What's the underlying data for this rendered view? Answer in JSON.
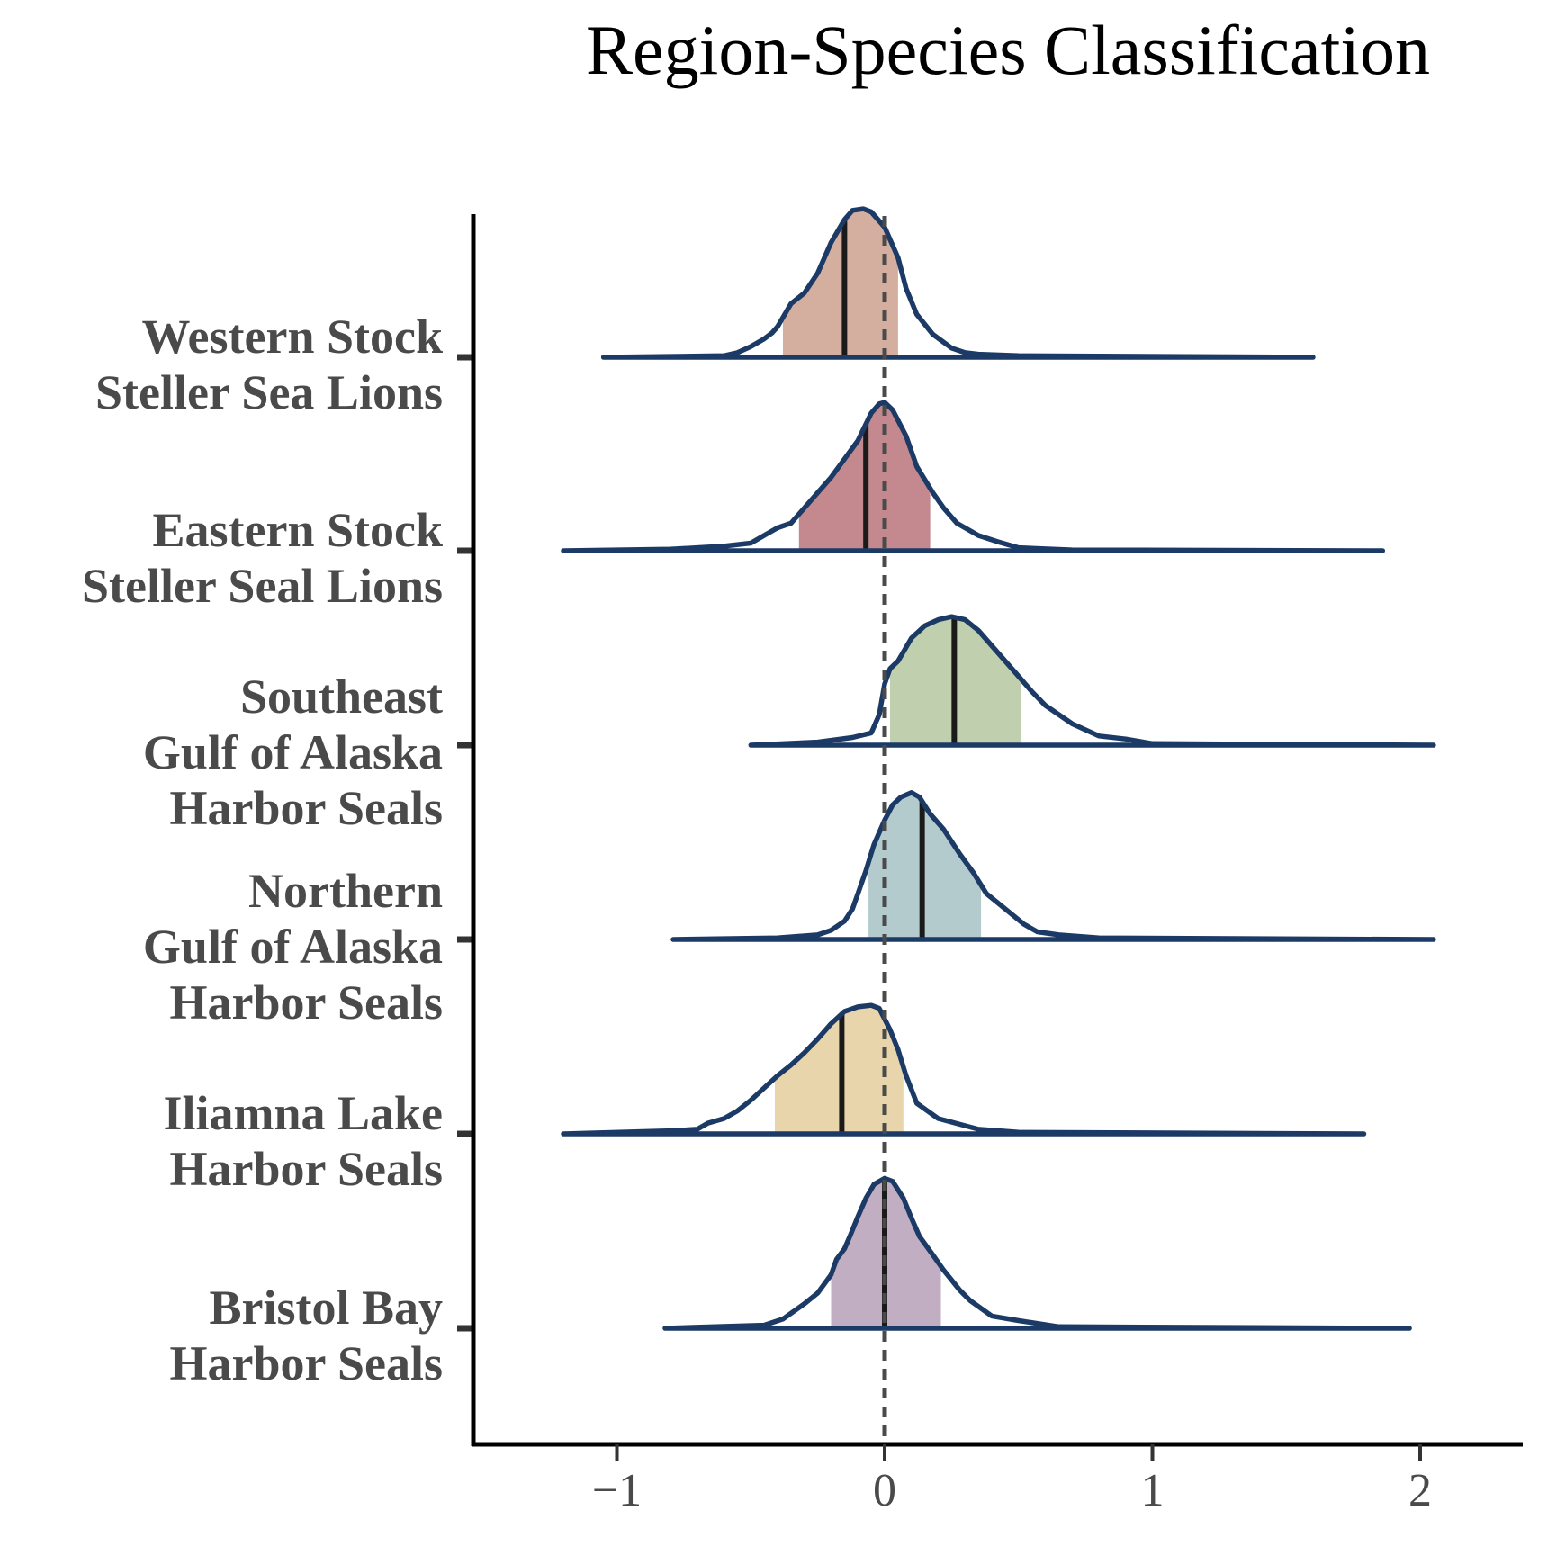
{
  "chart_data": {
    "type": "ridgeline",
    "title": "Region-Species Classification",
    "xlabel": "",
    "ylabel": "",
    "xlim": [
      -1.55,
      2.4
    ],
    "xticks": [
      -1,
      0,
      1,
      2
    ],
    "xtick_labels": [
      "−1",
      "0",
      "1",
      "2"
    ],
    "reference_line": {
      "x": 0,
      "style": "dashed"
    },
    "grid": false,
    "legend": "none",
    "outline_color": "#1c3a66",
    "series": [
      {
        "label_lines": [
          "Western Stock",
          "Steller Sea Lions"
        ],
        "color": "#d4afa0",
        "median": -0.15,
        "ci": [
          -0.38,
          0.05
        ],
        "range": [
          -1.05,
          1.6
        ],
        "density": [
          [
            -1.05,
            0
          ],
          [
            -0.6,
            0.01
          ],
          [
            -0.55,
            0.03
          ],
          [
            -0.5,
            0.07
          ],
          [
            -0.45,
            0.12
          ],
          [
            -0.42,
            0.16
          ],
          [
            -0.4,
            0.2
          ],
          [
            -0.35,
            0.35
          ],
          [
            -0.3,
            0.42
          ],
          [
            -0.25,
            0.55
          ],
          [
            -0.2,
            0.75
          ],
          [
            -0.15,
            0.9
          ],
          [
            -0.12,
            0.96
          ],
          [
            -0.08,
            0.97
          ],
          [
            -0.05,
            0.95
          ],
          [
            0,
            0.85
          ],
          [
            0.05,
            0.65
          ],
          [
            0.08,
            0.45
          ],
          [
            0.12,
            0.28
          ],
          [
            0.18,
            0.15
          ],
          [
            0.25,
            0.06
          ],
          [
            0.3,
            0.03
          ],
          [
            0.35,
            0.02
          ],
          [
            0.5,
            0.01
          ],
          [
            1.6,
            0
          ]
        ]
      },
      {
        "label_lines": [
          "Eastern Stock",
          "Steller Seal Lions"
        ],
        "color": "#c4898f",
        "median": -0.07,
        "ci": [
          -0.32,
          0.17
        ],
        "range": [
          -1.2,
          1.86
        ],
        "density": [
          [
            -1.2,
            0
          ],
          [
            -0.8,
            0.01
          ],
          [
            -0.6,
            0.03
          ],
          [
            -0.5,
            0.05
          ],
          [
            -0.45,
            0.1
          ],
          [
            -0.4,
            0.15
          ],
          [
            -0.35,
            0.18
          ],
          [
            -0.3,
            0.28
          ],
          [
            -0.25,
            0.38
          ],
          [
            -0.2,
            0.48
          ],
          [
            -0.15,
            0.6
          ],
          [
            -0.1,
            0.72
          ],
          [
            -0.05,
            0.9
          ],
          [
            -0.02,
            0.96
          ],
          [
            0,
            0.97
          ],
          [
            0.03,
            0.92
          ],
          [
            0.08,
            0.75
          ],
          [
            0.12,
            0.55
          ],
          [
            0.18,
            0.38
          ],
          [
            0.22,
            0.28
          ],
          [
            0.27,
            0.18
          ],
          [
            0.35,
            0.1
          ],
          [
            0.42,
            0.06
          ],
          [
            0.5,
            0.02
          ],
          [
            0.7,
            0.005
          ],
          [
            1.86,
            0
          ]
        ]
      },
      {
        "label_lines": [
          "Southeast",
          "Gulf of Alaska",
          "Harbor Seals"
        ],
        "color": "#c0cfae",
        "median": 0.26,
        "ci": [
          0.02,
          0.51
        ],
        "range": [
          -0.5,
          2.05
        ],
        "density": [
          [
            -0.5,
            0
          ],
          [
            -0.25,
            0.02
          ],
          [
            -0.12,
            0.05
          ],
          [
            -0.05,
            0.08
          ],
          [
            -0.02,
            0.2
          ],
          [
            0,
            0.4
          ],
          [
            0.02,
            0.5
          ],
          [
            0.05,
            0.55
          ],
          [
            0.1,
            0.7
          ],
          [
            0.15,
            0.78
          ],
          [
            0.2,
            0.82
          ],
          [
            0.25,
            0.84
          ],
          [
            0.3,
            0.82
          ],
          [
            0.35,
            0.75
          ],
          [
            0.4,
            0.65
          ],
          [
            0.45,
            0.55
          ],
          [
            0.5,
            0.45
          ],
          [
            0.55,
            0.35
          ],
          [
            0.6,
            0.26
          ],
          [
            0.7,
            0.14
          ],
          [
            0.8,
            0.06
          ],
          [
            0.9,
            0.04
          ],
          [
            1.0,
            0.01
          ],
          [
            2.05,
            0
          ]
        ]
      },
      {
        "label_lines": [
          "Northern",
          "Gulf of Alaska",
          "Harbor Seals"
        ],
        "color": "#b4cbcd",
        "median": 0.14,
        "ci": [
          -0.06,
          0.36
        ],
        "range": [
          -0.79,
          2.05
        ],
        "density": [
          [
            -0.79,
            0
          ],
          [
            -0.4,
            0.01
          ],
          [
            -0.25,
            0.03
          ],
          [
            -0.2,
            0.06
          ],
          [
            -0.15,
            0.12
          ],
          [
            -0.12,
            0.2
          ],
          [
            -0.1,
            0.3
          ],
          [
            -0.07,
            0.45
          ],
          [
            -0.04,
            0.62
          ],
          [
            0,
            0.78
          ],
          [
            0.03,
            0.88
          ],
          [
            0.06,
            0.93
          ],
          [
            0.1,
            0.96
          ],
          [
            0.13,
            0.93
          ],
          [
            0.17,
            0.82
          ],
          [
            0.22,
            0.72
          ],
          [
            0.28,
            0.56
          ],
          [
            0.33,
            0.44
          ],
          [
            0.38,
            0.3
          ],
          [
            0.45,
            0.2
          ],
          [
            0.52,
            0.1
          ],
          [
            0.57,
            0.05
          ],
          [
            0.65,
            0.03
          ],
          [
            0.8,
            0.01
          ],
          [
            2.05,
            0
          ]
        ]
      },
      {
        "label_lines": [
          "Iliamna Lake",
          "Harbor Seals"
        ],
        "color": "#e8d5ab",
        "median": -0.16,
        "ci": [
          -0.41,
          0.07
        ],
        "range": [
          -1.2,
          1.79
        ],
        "density": [
          [
            -1.2,
            0
          ],
          [
            -0.8,
            0.02
          ],
          [
            -0.7,
            0.03
          ],
          [
            -0.66,
            0.07
          ],
          [
            -0.6,
            0.1
          ],
          [
            -0.55,
            0.15
          ],
          [
            -0.5,
            0.22
          ],
          [
            -0.45,
            0.3
          ],
          [
            -0.4,
            0.38
          ],
          [
            -0.35,
            0.45
          ],
          [
            -0.3,
            0.53
          ],
          [
            -0.25,
            0.62
          ],
          [
            -0.2,
            0.72
          ],
          [
            -0.15,
            0.8
          ],
          [
            -0.1,
            0.83
          ],
          [
            -0.05,
            0.84
          ],
          [
            -0.02,
            0.82
          ],
          [
            0.02,
            0.68
          ],
          [
            0.05,
            0.55
          ],
          [
            0.08,
            0.38
          ],
          [
            0.12,
            0.2
          ],
          [
            0.2,
            0.1
          ],
          [
            0.35,
            0.03
          ],
          [
            0.5,
            0.01
          ],
          [
            1.79,
            0
          ]
        ]
      },
      {
        "label_lines": [
          "Bristol Bay",
          "Harbor Seals"
        ],
        "color": "#c1aec3",
        "median": 0.0,
        "ci": [
          -0.2,
          0.21
        ],
        "range": [
          -0.82,
          1.96
        ],
        "density": [
          [
            -0.82,
            0
          ],
          [
            -0.45,
            0.02
          ],
          [
            -0.38,
            0.06
          ],
          [
            -0.3,
            0.16
          ],
          [
            -0.25,
            0.23
          ],
          [
            -0.2,
            0.35
          ],
          [
            -0.18,
            0.45
          ],
          [
            -0.15,
            0.52
          ],
          [
            -0.13,
            0.6
          ],
          [
            -0.1,
            0.73
          ],
          [
            -0.07,
            0.85
          ],
          [
            -0.04,
            0.94
          ],
          [
            0,
            0.98
          ],
          [
            0.03,
            0.96
          ],
          [
            0.07,
            0.85
          ],
          [
            0.1,
            0.72
          ],
          [
            0.13,
            0.6
          ],
          [
            0.18,
            0.48
          ],
          [
            0.22,
            0.38
          ],
          [
            0.28,
            0.25
          ],
          [
            0.32,
            0.18
          ],
          [
            0.4,
            0.08
          ],
          [
            0.5,
            0.05
          ],
          [
            0.65,
            0.01
          ],
          [
            1.96,
            0
          ]
        ]
      }
    ]
  }
}
